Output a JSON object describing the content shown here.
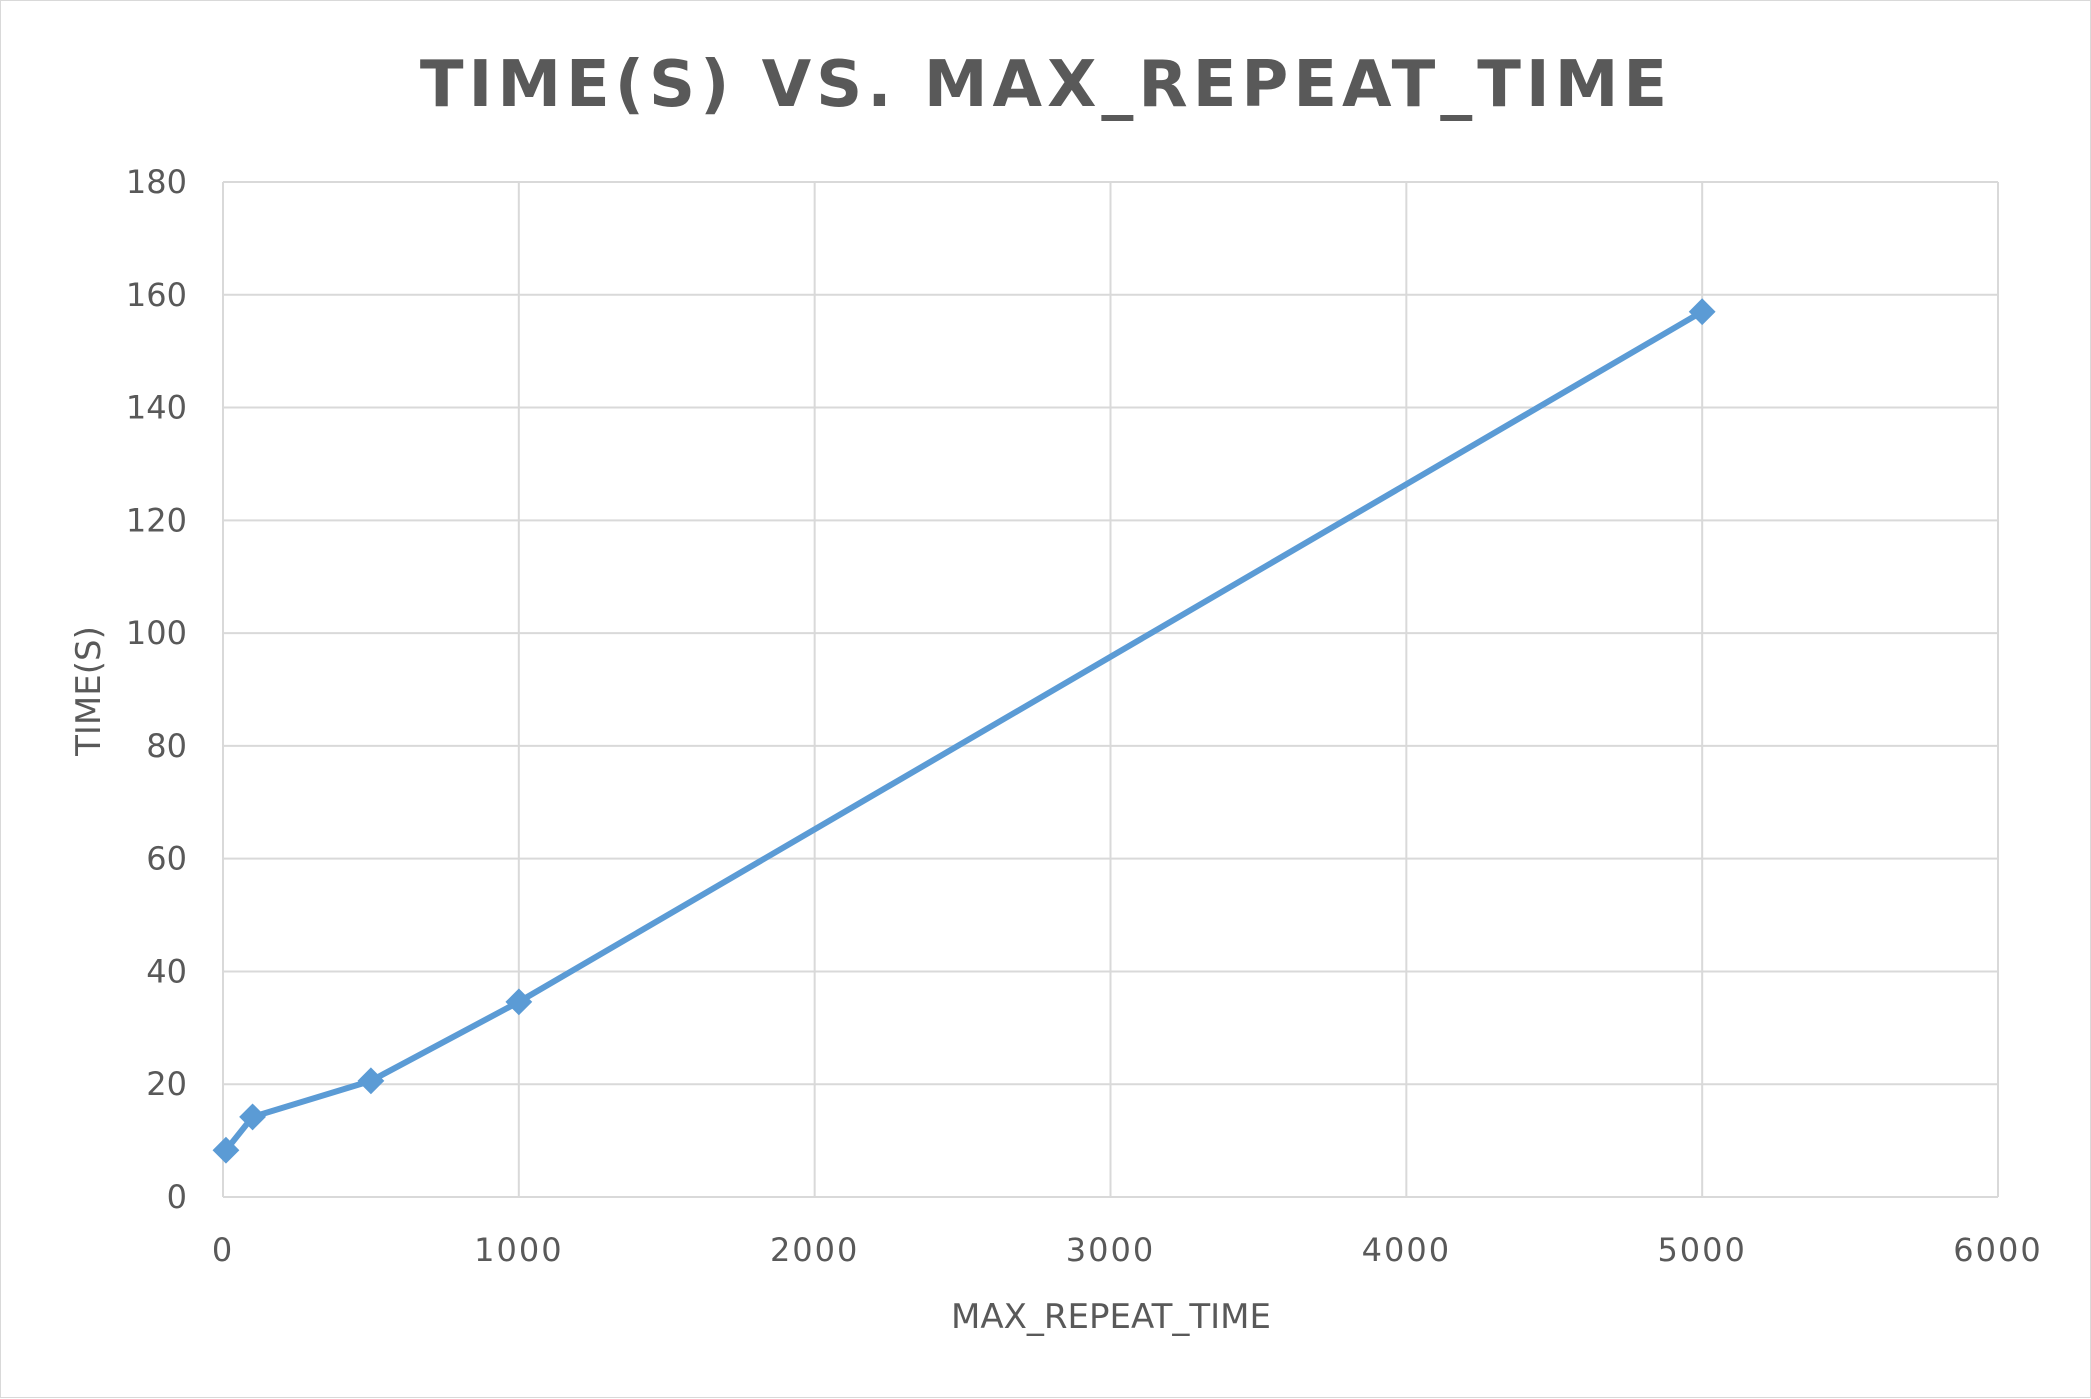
{
  "chart_data": {
    "type": "line",
    "title": "TIME(S) VS. MAX_REPEAT_TIME",
    "xlabel": "MAX_REPEAT_TIME",
    "ylabel": "TIME(S)",
    "xlim": [
      0,
      6000
    ],
    "ylim": [
      0,
      180
    ],
    "x_ticks": [
      0,
      1000,
      2000,
      3000,
      4000,
      5000,
      6000
    ],
    "y_ticks": [
      0,
      20,
      40,
      60,
      80,
      100,
      120,
      140,
      160,
      180
    ],
    "grid": true,
    "legend": "none",
    "marker": "diamond",
    "series": [
      {
        "color": "#5b9bd5",
        "x": [
          10,
          100,
          500,
          1000,
          5000
        ],
        "y": [
          8.3,
          14.2,
          20.6,
          34.6,
          157
        ]
      }
    ]
  }
}
